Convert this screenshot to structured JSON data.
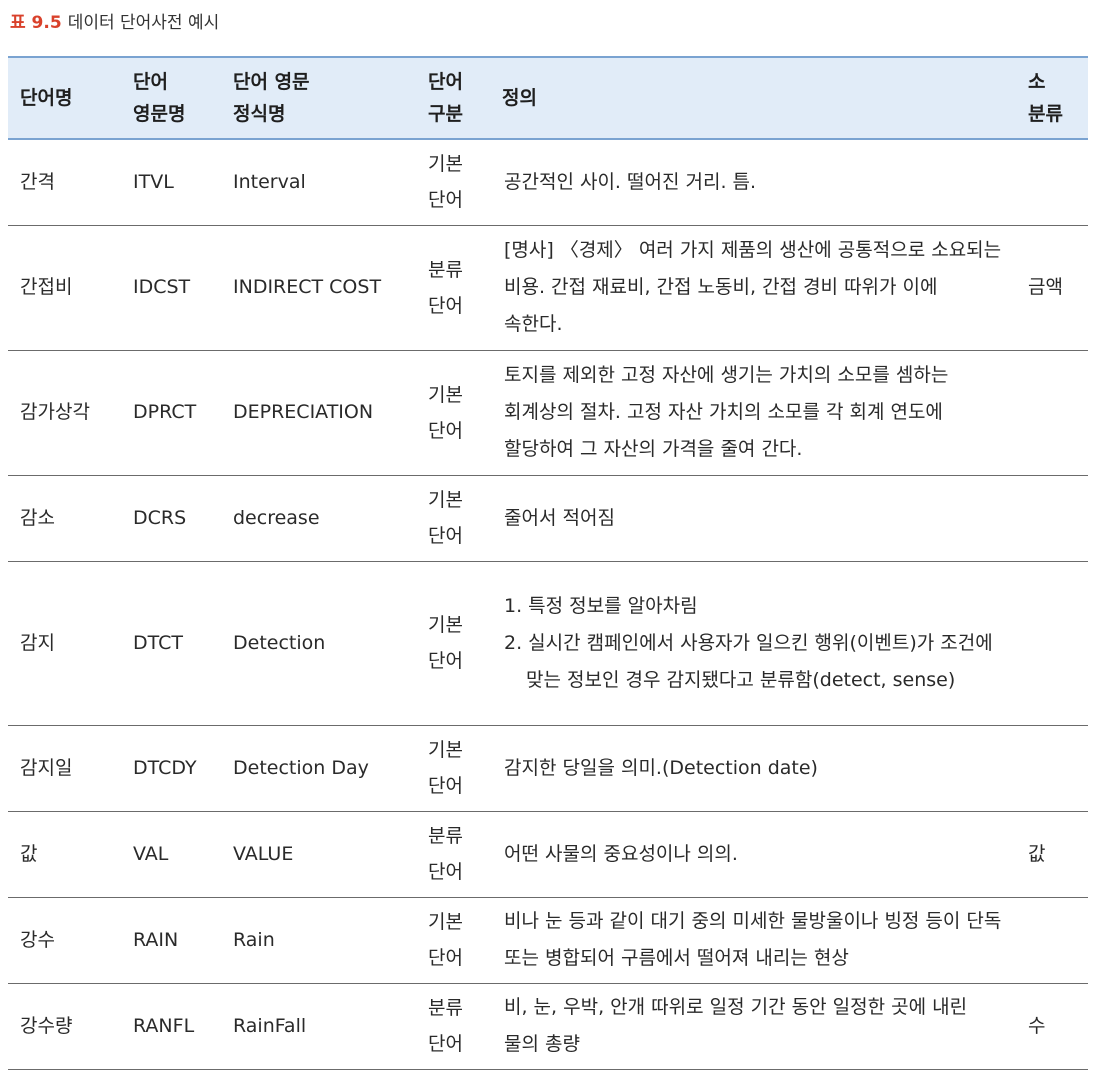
{
  "caption": {
    "number": "표 9.5",
    "title": "데이터 단어사전 예시"
  },
  "headers": {
    "name": [
      "단어명"
    ],
    "eng_abbr": [
      "단어",
      "영문명"
    ],
    "eng_full": [
      "단어 영문",
      "정식명"
    ],
    "type": [
      "단어",
      "구분"
    ],
    "definition": [
      "정의"
    ],
    "subclass": [
      "소",
      "분류"
    ]
  },
  "rows": [
    {
      "name": "간격",
      "abbr": "ITVL",
      "full": "Interval",
      "type": [
        "기본",
        "단어"
      ],
      "def": [
        "공간적인 사이. 떨어진 거리. 틈."
      ],
      "sub": ""
    },
    {
      "name": "간접비",
      "abbr": "IDCST",
      "full": "INDIRECT COST",
      "type": [
        "분류",
        "단어"
      ],
      "def": [
        "[명사] 〈경제〉 여러 가지 제품의 생산에 공통적으로 소요되는 비용. 간접 재료비, 간접 노동비, 간접 경비 따위가 이에 속한다."
      ],
      "sub": "금액"
    },
    {
      "name": "감가상각",
      "abbr": "DPRCT",
      "full": "DEPRECIATION",
      "type": [
        "기본",
        "단어"
      ],
      "def": [
        "토지를 제외한 고정 자산에 생기는 가치의 소모를 셈하는 회계상의 절차. 고정 자산 가치의 소모를 각 회계 연도에 할당하여 그 자산의 가격을 줄여 간다."
      ],
      "sub": ""
    },
    {
      "name": "감소",
      "abbr": "DCRS",
      "full": "decrease",
      "type": [
        "기본",
        "단어"
      ],
      "def": [
        "줄어서 적어짐"
      ],
      "sub": ""
    },
    {
      "name": "감지",
      "abbr": "DTCT",
      "full": "Detection",
      "type": [
        "기본",
        "단어"
      ],
      "def": [
        "1. 특정 정보를 알아차림",
        "2. 실시간 캠페인에서 사용자가 일으킨 행위(이벤트)가 조건에 맞는 정보인 경우 감지됐다고 분류함(detect, sense)"
      ],
      "sub": ""
    },
    {
      "name": "감지일",
      "abbr": "DTCDY",
      "full": "Detection Day",
      "type": [
        "기본",
        "단어"
      ],
      "def": [
        "감지한 당일을 의미.(Detection date)"
      ],
      "sub": ""
    },
    {
      "name": "값",
      "abbr": "VAL",
      "full": "VALUE",
      "type": [
        "분류",
        "단어"
      ],
      "def": [
        "어떤 사물의 중요성이나 의의."
      ],
      "sub": "값"
    },
    {
      "name": "강수",
      "abbr": "RAIN",
      "full": "Rain",
      "type": [
        "기본",
        "단어"
      ],
      "def": [
        "비나 눈 등과 같이 대기 중의 미세한 물방울이나 빙정 등이 단독 또는 병합되어 구름에서 떨어져 내리는 현상"
      ],
      "sub": ""
    },
    {
      "name": "강수량",
      "abbr": "RANFL",
      "full": "RainFall",
      "type": [
        "분류",
        "단어"
      ],
      "def": [
        "비, 눈, 우박, 안개 따위로 일정 기간 동안 일정한 곳에 내린 물의 총량"
      ],
      "sub": "수"
    }
  ]
}
